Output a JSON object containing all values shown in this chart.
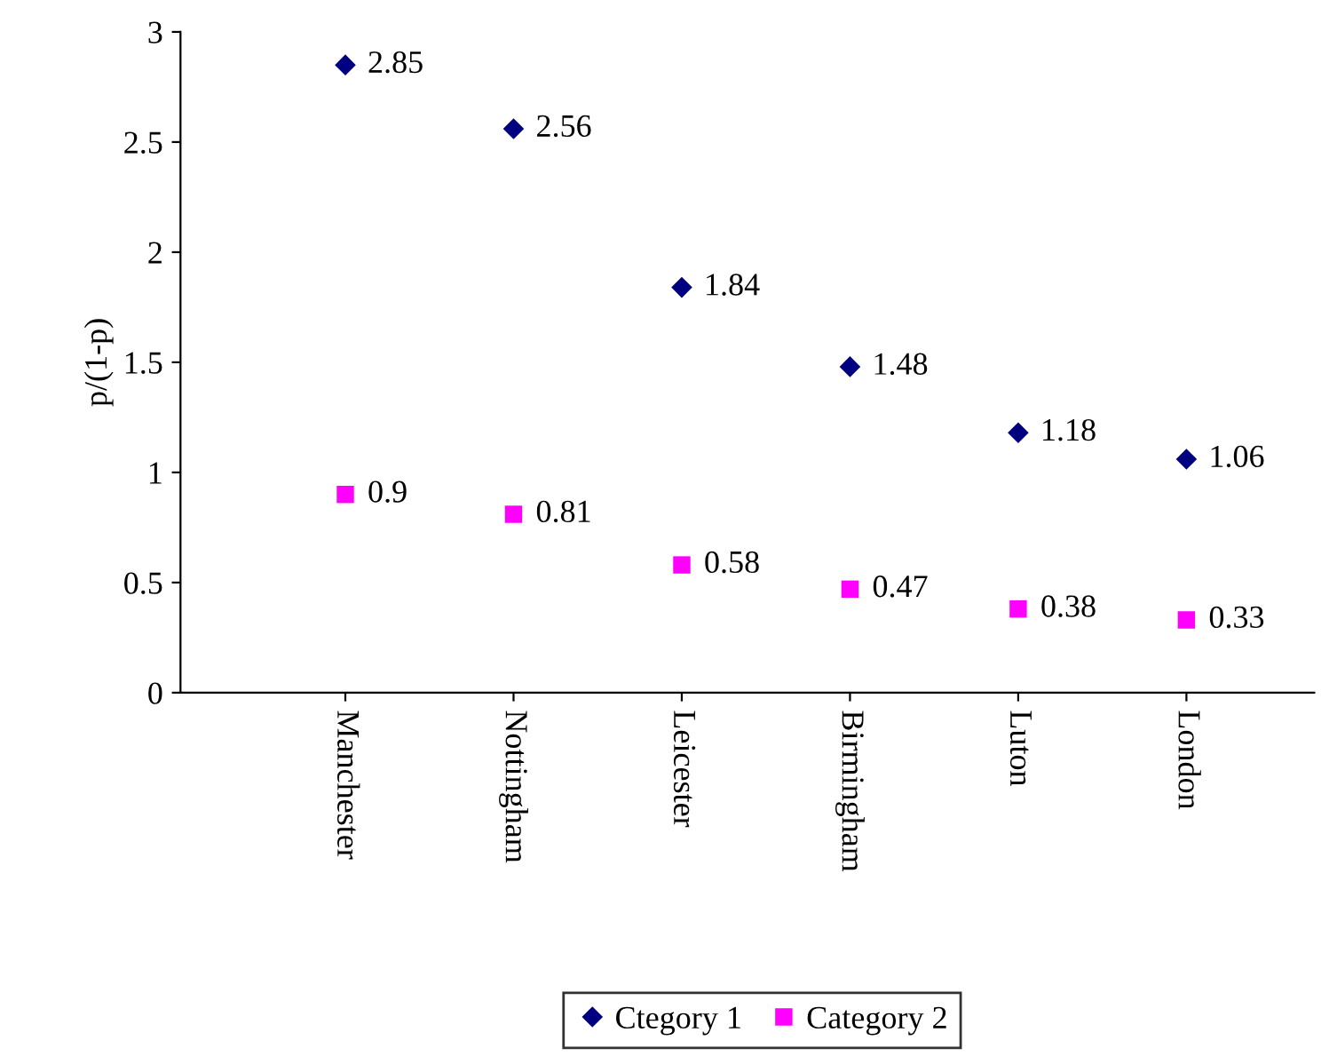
{
  "chart_data": {
    "type": "scatter",
    "ylabel": "p/(1-p)",
    "categories": [
      "Manchester",
      "Nottingham",
      "Leicester",
      "Birmingham",
      "Luton",
      "London"
    ],
    "series": [
      {
        "name": "Ctegory 1",
        "color": "#000080",
        "marker": "diamond",
        "values": [
          2.85,
          2.56,
          1.84,
          1.48,
          1.18,
          1.06
        ]
      },
      {
        "name": "Category 2",
        "color": "#ff00ff",
        "marker": "square",
        "values": [
          0.9,
          0.81,
          0.58,
          0.47,
          0.38,
          0.33
        ]
      }
    ],
    "ylim": [
      0,
      3
    ],
    "yticks": [
      0,
      0.5,
      1,
      1.5,
      2,
      2.5,
      3
    ],
    "grid": false,
    "legend": "bottom",
    "data_labels": true
  }
}
